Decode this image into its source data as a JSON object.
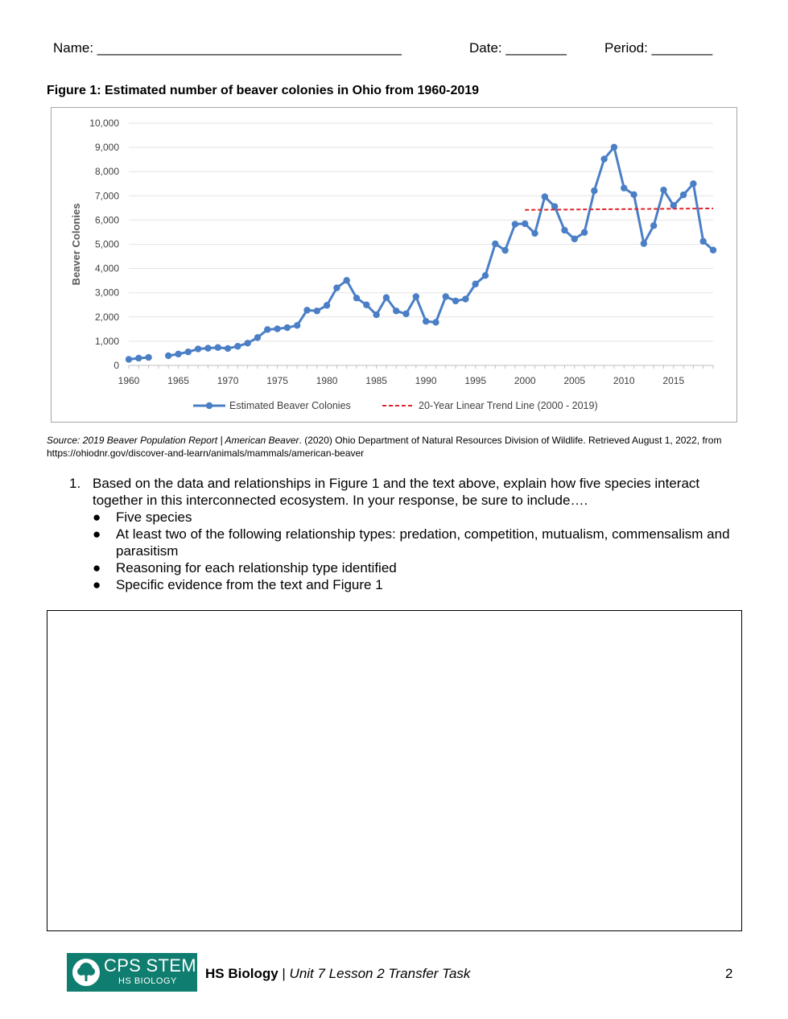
{
  "header": {
    "name_label": "Name: ________________________________________",
    "date_label": "Date: ________",
    "period_label": "Period: ________"
  },
  "figure": {
    "title": "Figure 1: Estimated number of beaver colonies in Ohio from 1960-2019"
  },
  "chart_data": {
    "type": "line",
    "ylabel": "Beaver Colonies",
    "xlabel": "",
    "ylim": [
      0,
      10000
    ],
    "xlim": [
      1960,
      2019
    ],
    "y_ticks": [
      "0",
      "1,000",
      "2,000",
      "3,000",
      "4,000",
      "5,000",
      "6,000",
      "7,000",
      "8,000",
      "9,000",
      "10,000"
    ],
    "x_ticks": [
      "1960",
      "1965",
      "1970",
      "1975",
      "1980",
      "1985",
      "1990",
      "1995",
      "2000",
      "2005",
      "2010",
      "2015"
    ],
    "grid": "horizontal",
    "legend_position": "bottom",
    "series": [
      {
        "name": "Estimated Beaver Colonies",
        "color": "#4a7fc6",
        "x": [
          1960,
          1961,
          1962,
          1964,
          1965,
          1966,
          1967,
          1968,
          1969,
          1970,
          1971,
          1972,
          1973,
          1974,
          1975,
          1976,
          1977,
          1978,
          1979,
          1980,
          1981,
          1982,
          1983,
          1984,
          1985,
          1986,
          1987,
          1988,
          1989,
          1990,
          1991,
          1992,
          1993,
          1994,
          1995,
          1996,
          1997,
          1998,
          1999,
          2000,
          2001,
          2002,
          2003,
          2004,
          2005,
          2006,
          2007,
          2008,
          2009,
          2010,
          2011,
          2012,
          2013,
          2014,
          2015,
          2016,
          2017,
          2018,
          2019
        ],
        "values": [
          250,
          300,
          330,
          400,
          470,
          560,
          680,
          710,
          740,
          700,
          790,
          920,
          1150,
          1480,
          1510,
          1560,
          1650,
          2280,
          2250,
          2480,
          3200,
          3510,
          2780,
          2500,
          2090,
          2800,
          2250,
          2130,
          2840,
          1820,
          1780,
          2840,
          2660,
          2740,
          3360,
          3710,
          5020,
          4750,
          5830,
          5850,
          5450,
          6960,
          6560,
          5580,
          5220,
          5490,
          7210,
          8520,
          9010,
          7320,
          7050,
          5030,
          5770,
          7240,
          6600,
          7040,
          7500,
          5120,
          4760
        ]
      },
      {
        "name": "20-Year Linear Trend Line (2000 - 2019)",
        "color": "#e0242c",
        "style": "dashed",
        "x": [
          2000,
          2019
        ],
        "values": [
          6420,
          6480
        ]
      }
    ]
  },
  "source": {
    "italic": "Source: 2019 Beaver Population Report | American Beaver",
    "rest": ". (2020) Ohio Department of Natural Resources Division of Wildlife. Retrieved August 1, 2022, from https://ohiodnr.gov/discover-and-learn/animals/mammals/american-beaver"
  },
  "question": {
    "number": "1.",
    "text": "Based on the data and relationships in Figure 1 and the text above, explain how five species interact together in this interconnected ecosystem. In your response, be sure to include….",
    "bullet_char": "●",
    "bullets": [
      "Five species",
      "At least two of the following relationship types: predation, competition, mutualism, commensalism and parasitism",
      "Reasoning for each relationship type identified",
      "Specific evidence from the text and Figure 1"
    ]
  },
  "footer": {
    "logo_line1": "CPS STEM",
    "logo_line2": "HS BIOLOGY",
    "course": "HS Biology",
    "separator": " | ",
    "unit": "Unit 7 Lesson 2 Transfer Task",
    "page": "2"
  }
}
